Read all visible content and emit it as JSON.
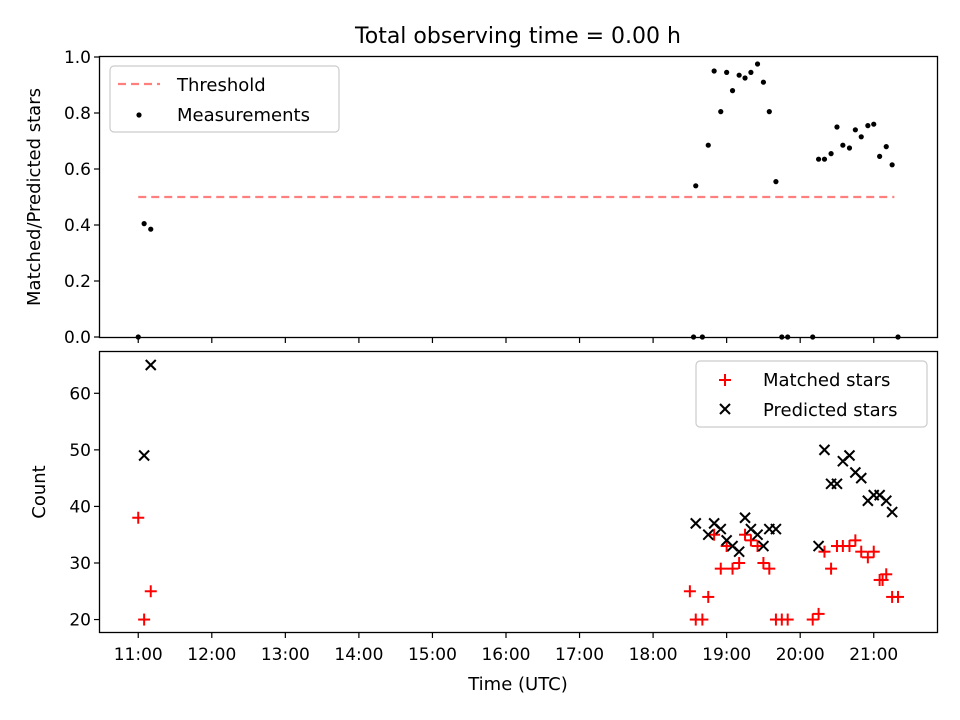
{
  "chart_data": [
    {
      "type": "scatter",
      "title": "Total observing time = 0.00 h",
      "ylabel": "Matched/Predicted stars",
      "xlim": [
        10.48,
        21.86
      ],
      "ylim": [
        0.0,
        1.0
      ],
      "y_ticks": [
        "0.0",
        "0.2",
        "0.4",
        "0.6",
        "0.8",
        "1.0"
      ],
      "grid": false,
      "legend_position": "top-left",
      "series": [
        {
          "name": "Threshold",
          "kind": "dashed-line",
          "color": "#ff7f7f",
          "x": [
            11.0,
            21.28
          ],
          "y": [
            0.5,
            0.5
          ]
        },
        {
          "name": "Measurements",
          "kind": "dots",
          "color": "#000000",
          "x": [
            11.0,
            11.08,
            11.17,
            18.55,
            18.58,
            18.67,
            18.75,
            18.83,
            18.92,
            19.0,
            19.08,
            19.17,
            19.25,
            19.33,
            19.42,
            19.5,
            19.58,
            19.67,
            19.75,
            19.83,
            20.17,
            20.25,
            20.33,
            20.42,
            20.5,
            20.58,
            20.67,
            20.75,
            20.83,
            20.92,
            21.0,
            21.08,
            21.17,
            21.25,
            21.33
          ],
          "y": [
            0.0,
            0.405,
            0.385,
            0.0,
            0.54,
            0.0,
            0.685,
            0.95,
            0.805,
            0.945,
            0.88,
            0.935,
            0.925,
            0.945,
            0.975,
            0.91,
            0.805,
            0.555,
            0.0,
            0.0,
            0.0,
            0.635,
            0.635,
            0.655,
            0.75,
            0.685,
            0.675,
            0.74,
            0.715,
            0.755,
            0.76,
            0.645,
            0.68,
            0.615,
            0.0
          ]
        }
      ]
    },
    {
      "type": "scatter",
      "xlabel": "Time (UTC)",
      "ylabel": "Count",
      "xlim": [
        10.48,
        21.86
      ],
      "ylim": [
        17.8,
        67.3
      ],
      "x_ticks": [
        "11:00",
        "12:00",
        "13:00",
        "14:00",
        "15:00",
        "16:00",
        "17:00",
        "18:00",
        "19:00",
        "20:00",
        "21:00"
      ],
      "y_ticks": [
        "20",
        "30",
        "40",
        "50",
        "60"
      ],
      "grid": false,
      "legend_position": "top-right",
      "series": [
        {
          "name": "Matched stars",
          "marker": "plus",
          "color": "#ff0000",
          "x": [
            11.0,
            11.08,
            11.17,
            18.5,
            18.58,
            18.67,
            18.75,
            18.83,
            18.92,
            19.0,
            19.08,
            19.17,
            19.25,
            19.33,
            19.42,
            19.5,
            19.58,
            19.67,
            19.75,
            19.83,
            20.17,
            20.25,
            20.33,
            20.42,
            20.5,
            20.58,
            20.67,
            20.75,
            20.83,
            20.92,
            21.0,
            21.08,
            21.12,
            21.17,
            21.25,
            21.33
          ],
          "y": [
            38,
            20,
            25,
            25,
            20,
            20,
            24,
            35,
            29,
            33,
            29,
            30,
            35,
            34,
            33,
            30,
            29,
            20,
            20,
            20,
            20,
            21,
            32,
            29,
            33,
            33,
            33,
            34,
            32,
            31,
            32,
            27,
            27,
            28,
            24,
            24
          ]
        },
        {
          "name": "Predicted stars",
          "marker": "x",
          "color": "#000000",
          "x": [
            11.08,
            11.17,
            18.58,
            18.75,
            18.83,
            18.92,
            19.0,
            19.08,
            19.17,
            19.25,
            19.33,
            19.42,
            19.5,
            19.58,
            19.67,
            20.25,
            20.33,
            20.42,
            20.5,
            20.58,
            20.67,
            20.75,
            20.83,
            20.92,
            21.0,
            21.08,
            21.17,
            21.25
          ],
          "y": [
            49,
            65,
            37,
            35,
            37,
            36,
            34,
            33,
            32,
            38,
            36,
            35,
            33,
            36,
            36,
            33,
            50,
            44,
            44,
            48,
            49,
            46,
            45,
            41,
            42,
            42,
            41,
            39
          ]
        }
      ]
    }
  ]
}
